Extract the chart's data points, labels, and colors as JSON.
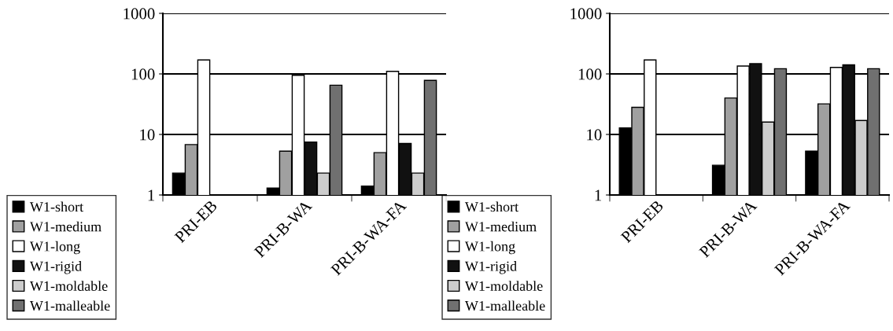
{
  "chart_data": [
    {
      "type": "bar",
      "categories": [
        "PRI-EB",
        "PRI-B-WA",
        "PRI-B-WA-FA"
      ],
      "log": "y",
      "ylim": [
        1,
        1000
      ],
      "yticks": [
        1,
        10,
        100,
        1000
      ],
      "grid": "y",
      "legend": "bottom left",
      "series": [
        {
          "name": "W1-short",
          "color": "#000000",
          "values": [
            2.3,
            1.3,
            1.4
          ]
        },
        {
          "name": "W1-medium",
          "color": "#a0a0a0",
          "values": [
            6.8,
            5.3,
            5.0
          ]
        },
        {
          "name": "W1-long",
          "color": "#ffffff",
          "values": [
            170,
            95,
            110
          ]
        },
        {
          "name": "W1-rigid",
          "color": "#111111",
          "values": [
            null,
            7.5,
            7.1
          ]
        },
        {
          "name": "W1-moldable",
          "color": "#cccccc",
          "values": [
            null,
            2.3,
            2.3
          ]
        },
        {
          "name": "W1-malleable",
          "color": "#707070",
          "values": [
            null,
            65,
            78
          ]
        }
      ]
    },
    {
      "type": "bar",
      "categories": [
        "PRI-EB",
        "PRI-B-WA",
        "PRI-B-WA-FA"
      ],
      "log": "y",
      "ylim": [
        1,
        1000
      ],
      "yticks": [
        1,
        10,
        100,
        1000
      ],
      "grid": "y",
      "legend": "bottom left",
      "series": [
        {
          "name": "W1-short",
          "color": "#000000",
          "values": [
            12.8,
            3.1,
            5.3
          ]
        },
        {
          "name": "W1-medium",
          "color": "#a0a0a0",
          "values": [
            28,
            40,
            32
          ]
        },
        {
          "name": "W1-long",
          "color": "#ffffff",
          "values": [
            170,
            135,
            128
          ]
        },
        {
          "name": "W1-rigid",
          "color": "#111111",
          "values": [
            null,
            148,
            141
          ]
        },
        {
          "name": "W1-moldable",
          "color": "#cccccc",
          "values": [
            null,
            16,
            17
          ]
        },
        {
          "name": "W1-malleable",
          "color": "#707070",
          "values": [
            null,
            122,
            122
          ]
        }
      ]
    }
  ]
}
